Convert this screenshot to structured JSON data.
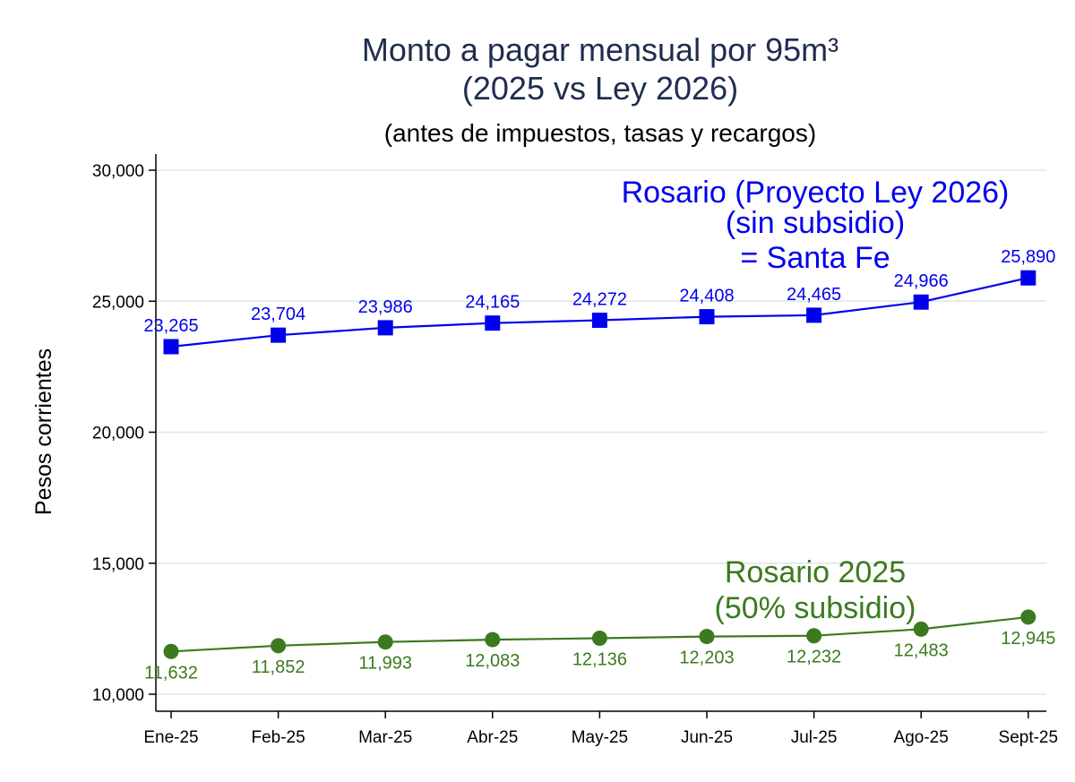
{
  "chart_data": {
    "type": "line",
    "title_lines": [
      "Monto a pagar mensual por 95m³",
      "(2025 vs Ley 2026)"
    ],
    "subtitle": "(antes de impuestos, tasas y recargos)",
    "ylabel": "Pesos corrientes",
    "xlabel": "",
    "ylim": [
      10000,
      30000
    ],
    "yticks": [
      10000,
      15000,
      20000,
      25000,
      30000
    ],
    "ytick_labels": [
      "10,000",
      "15,000",
      "20,000",
      "25,000",
      "30,000"
    ],
    "grid": true,
    "categories": [
      "Ene-25",
      "Feb-25",
      "Mar-25",
      "Abr-25",
      "May-25",
      "Jun-25",
      "Jul-25",
      "Ago-25",
      "Sept-25"
    ],
    "series": [
      {
        "name": "Rosario (Proyecto Ley 2026) (sin subsidio) = Santa Fe",
        "color": "#0000ee",
        "marker": "square",
        "label_position": "above",
        "values": [
          23265,
          23704,
          23986,
          24165,
          24272,
          24408,
          24465,
          24966,
          25890
        ],
        "value_labels": [
          "23,265",
          "23,704",
          "23,986",
          "24,165",
          "24,272",
          "24,408",
          "24,465",
          "24,966",
          "25,890"
        ],
        "annotation_lines": [
          "Rosario (Proyecto Ley 2026)",
          "(sin subsidio)",
          "= Santa Fe"
        ]
      },
      {
        "name": "Rosario 2025 (50% subsidio)",
        "color": "#3b7a1e",
        "marker": "circle",
        "label_position": "below",
        "values": [
          11632,
          11852,
          11993,
          12083,
          12136,
          12203,
          12232,
          12483,
          12945
        ],
        "value_labels": [
          "11,632",
          "11,852",
          "11,993",
          "12,083",
          "12,136",
          "12,203",
          "12,232",
          "12,483",
          "12,945"
        ],
        "annotation_lines": [
          "Rosario 2025",
          "(50% subsidio)"
        ]
      }
    ]
  }
}
